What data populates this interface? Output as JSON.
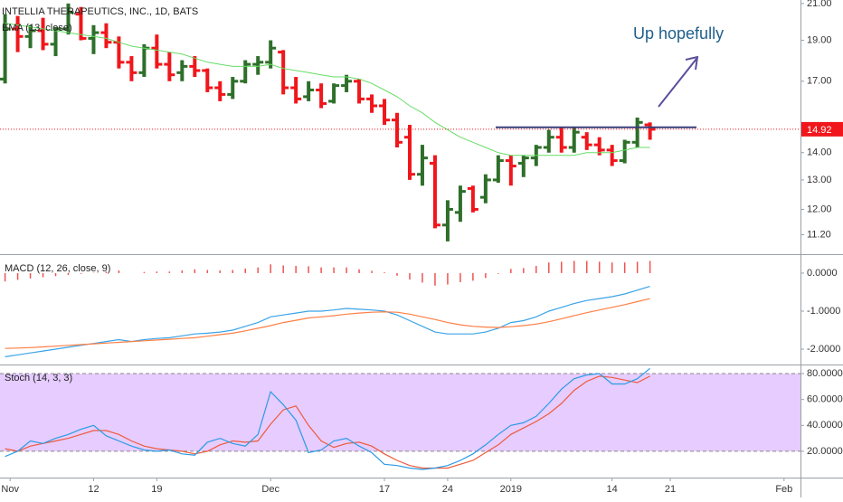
{
  "chart_data": [
    {
      "type": "ohlc",
      "title": "INTELLIA THERAPEUTICS, INC., 1D, BATS",
      "subtitle": "EMA (13, close)",
      "annotation": "Up hopefully",
      "x": [
        0,
        1,
        2,
        3,
        4,
        5,
        6,
        7,
        8,
        9,
        10,
        11,
        12,
        13,
        14,
        15,
        16,
        17,
        18,
        19,
        20,
        21,
        22,
        23,
        24,
        25,
        26,
        27,
        28,
        29,
        30,
        31,
        32,
        33,
        34,
        35,
        36,
        37,
        38,
        39,
        40,
        41,
        42,
        43,
        44,
        45,
        46,
        47,
        48,
        49,
        50,
        51
      ],
      "open": [
        17.1,
        19.6,
        19.2,
        19.5,
        18.8,
        19.6,
        20.4,
        19.1,
        19.4,
        18.9,
        17.9,
        17.4,
        18.6,
        17.8,
        17.4,
        17.7,
        17.5,
        16.7,
        16.4,
        17.0,
        17.8,
        17.9,
        18.4,
        16.7,
        16.3,
        16.6,
        16.1,
        16.8,
        17.0,
        16.2,
        15.9,
        15.3,
        14.6,
        13.2,
        13.6,
        11.5,
        11.9,
        12.7,
        12.4,
        13.0,
        13.7,
        13.6,
        13.8,
        14.2,
        14.6,
        14.2,
        14.6,
        14.3,
        14.1,
        13.7,
        14.4,
        15.1
      ],
      "high": [
        20.4,
        20.3,
        19.8,
        20.2,
        19.7,
        21.0,
        20.8,
        19.8,
        19.9,
        19.2,
        18.2,
        18.8,
        19.3,
        18.4,
        18.0,
        18.2,
        17.6,
        17.0,
        17.2,
        18.0,
        18.2,
        19.0,
        18.5,
        17.2,
        17.0,
        16.9,
        16.9,
        17.3,
        17.1,
        16.4,
        16.2,
        15.6,
        15.1,
        14.3,
        13.9,
        12.3,
        12.8,
        12.8,
        13.2,
        13.9,
        13.9,
        13.9,
        14.3,
        14.9,
        15.0,
        15.0,
        14.8,
        14.6,
        14.3,
        14.5,
        15.4,
        15.2
      ],
      "low": [
        16.9,
        18.4,
        18.6,
        18.5,
        18.2,
        19.3,
        19.0,
        18.3,
        18.6,
        17.6,
        17.0,
        17.2,
        17.6,
        17.0,
        17.0,
        17.2,
        16.5,
        16.1,
        16.2,
        16.9,
        17.3,
        17.6,
        16.4,
        16.0,
        16.1,
        15.8,
        16.0,
        16.5,
        16.0,
        15.6,
        15.1,
        14.2,
        13.0,
        12.8,
        11.4,
        11.0,
        11.6,
        11.9,
        12.2,
        12.9,
        12.8,
        13.1,
        13.5,
        14.0,
        14.0,
        14.0,
        14.1,
        13.9,
        13.5,
        13.6,
        14.2,
        14.5
      ],
      "close": [
        19.6,
        19.2,
        19.5,
        18.8,
        19.6,
        20.5,
        19.1,
        19.4,
        18.9,
        17.9,
        17.4,
        18.6,
        17.8,
        17.3,
        17.7,
        17.5,
        16.7,
        16.4,
        17.0,
        17.8,
        17.9,
        18.6,
        16.7,
        16.2,
        16.6,
        16.0,
        16.8,
        17.0,
        16.2,
        15.9,
        15.3,
        14.4,
        13.2,
        13.8,
        11.5,
        12.0,
        12.6,
        12.0,
        13.0,
        13.7,
        13.5,
        13.8,
        14.2,
        14.6,
        14.2,
        14.8,
        14.3,
        14.1,
        13.7,
        14.4,
        15.2,
        14.92
      ],
      "ema": [
        19.9,
        19.8,
        19.7,
        19.6,
        19.5,
        19.4,
        19.3,
        19.2,
        19.1,
        18.9,
        18.7,
        18.6,
        18.5,
        18.4,
        18.3,
        18.1,
        17.9,
        17.8,
        17.7,
        17.7,
        17.7,
        17.8,
        17.6,
        17.5,
        17.4,
        17.3,
        17.2,
        17.2,
        17.1,
        16.9,
        16.6,
        16.3,
        15.9,
        15.6,
        15.2,
        14.9,
        14.6,
        14.4,
        14.2,
        14.0,
        13.9,
        13.9,
        13.9,
        13.9,
        13.9,
        13.9,
        14.0,
        14.0,
        14.0,
        14.1,
        14.2,
        14.2
      ],
      "up_color": "#2e6f2a",
      "down_color": "#f0161b",
      "ema_color": "#66dd66",
      "hline": 15.0,
      "hline_color": "#3a3f7a",
      "log": true,
      "xlim": [
        -0.4,
        62.9
      ],
      "ylim": [
        10.65,
        21.2
      ],
      "yticks": [
        {
          "value": 21,
          "label": "21.00"
        },
        {
          "value": 19,
          "label": "19.00"
        },
        {
          "value": 17,
          "label": "17.00"
        },
        {
          "value": 14,
          "label": "14.00"
        },
        {
          "value": 13,
          "label": "13.00"
        },
        {
          "value": 12,
          "label": "12.00"
        },
        {
          "value": 11.2,
          "label": "11.20"
        }
      ]
    },
    {
      "type": "macd",
      "title": "MACD (12, 26, close, 9)",
      "histogram": [
        -0.22,
        -0.18,
        -0.14,
        -0.11,
        -0.08,
        -0.05,
        -0.02,
        0.01,
        0.04,
        0.07,
        0.0,
        0.03,
        0.04,
        0.04,
        0.07,
        0.1,
        0.08,
        0.07,
        0.08,
        0.12,
        0.15,
        0.23,
        0.2,
        0.19,
        0.18,
        0.15,
        0.15,
        0.15,
        0.1,
        0.06,
        0.02,
        -0.07,
        -0.17,
        -0.25,
        -0.33,
        -0.3,
        -0.24,
        -0.2,
        -0.13,
        -0.02,
        0.11,
        0.13,
        0.19,
        0.28,
        0.3,
        0.32,
        0.32,
        0.3,
        0.28,
        0.28,
        0.3,
        0.32
      ],
      "macd": [
        -2.2,
        -2.15,
        -2.1,
        -2.05,
        -2.0,
        -1.95,
        -1.9,
        -1.85,
        -1.8,
        -1.75,
        -1.8,
        -1.75,
        -1.72,
        -1.7,
        -1.65,
        -1.6,
        -1.58,
        -1.55,
        -1.5,
        -1.4,
        -1.3,
        -1.15,
        -1.1,
        -1.05,
        -1.0,
        -1.0,
        -0.97,
        -0.93,
        -0.95,
        -0.97,
        -1.0,
        -1.1,
        -1.25,
        -1.4,
        -1.55,
        -1.6,
        -1.6,
        -1.6,
        -1.55,
        -1.45,
        -1.3,
        -1.25,
        -1.15,
        -1.0,
        -0.9,
        -0.8,
        -0.72,
        -0.67,
        -0.62,
        -0.55,
        -0.45,
        -0.35
      ],
      "signal": [
        -1.98,
        -1.97,
        -1.96,
        -1.94,
        -1.92,
        -1.9,
        -1.88,
        -1.86,
        -1.84,
        -1.82,
        -1.8,
        -1.78,
        -1.76,
        -1.74,
        -1.72,
        -1.7,
        -1.66,
        -1.62,
        -1.58,
        -1.52,
        -1.45,
        -1.38,
        -1.3,
        -1.24,
        -1.18,
        -1.15,
        -1.12,
        -1.08,
        -1.05,
        -1.03,
        -1.02,
        -1.03,
        -1.08,
        -1.15,
        -1.22,
        -1.3,
        -1.36,
        -1.4,
        -1.42,
        -1.43,
        -1.41,
        -1.38,
        -1.34,
        -1.28,
        -1.2,
        -1.12,
        -1.04,
        -0.97,
        -0.9,
        -0.83,
        -0.75,
        -0.67
      ],
      "histogram_color": "#ef5350",
      "macd_color": "#3ba3e8",
      "signal_color": "#ff7f45",
      "xlim": [
        -0.4,
        62.9
      ],
      "ylim": [
        -2.38,
        0.45
      ],
      "yticks": [
        {
          "value": 0,
          "label": "0.0000"
        },
        {
          "value": -1,
          "label": "-1.0000"
        },
        {
          "value": -2,
          "label": "-2.0000"
        }
      ]
    },
    {
      "type": "stoch",
      "title": "Stoch (14, 3, 3)",
      "k": [
        16,
        20,
        28,
        26,
        30,
        33,
        37,
        40,
        32,
        28,
        24,
        21,
        20,
        21,
        18,
        17,
        27,
        30,
        26,
        24,
        33,
        66,
        56,
        44,
        19,
        21,
        28,
        30,
        24,
        19,
        10,
        9,
        7,
        6,
        7,
        9,
        13,
        18,
        25,
        33,
        40,
        42,
        47,
        57,
        68,
        76,
        79,
        80,
        72,
        72,
        76,
        84
      ],
      "d": [
        22,
        20,
        24,
        26,
        28,
        30,
        33,
        36,
        36,
        33,
        28,
        24,
        22,
        21,
        20,
        18,
        20,
        25,
        28,
        27,
        28,
        41,
        52,
        55,
        40,
        28,
        23,
        26,
        27,
        24,
        18,
        13,
        9,
        7,
        7,
        7,
        10,
        13,
        19,
        25,
        33,
        38,
        43,
        49,
        57,
        67,
        74,
        78,
        77,
        75,
        73,
        78
      ],
      "k_color": "#2b9be4",
      "d_color": "#ef5a3c",
      "bands": [
        20,
        80
      ],
      "band_color": "#e6ccff",
      "xlim": [
        -0.4,
        62.9
      ],
      "ylim": [
        0.4,
        85.6
      ],
      "yticks": [
        {
          "value": 80,
          "label": "80.0000"
        },
        {
          "value": 60,
          "label": "60.0000"
        },
        {
          "value": 40,
          "label": "40.0000"
        },
        {
          "value": 20,
          "label": "20.0000"
        }
      ],
      "xticks": [
        {
          "value": 0.4,
          "label": "Nov"
        },
        {
          "value": 7,
          "label": "12"
        },
        {
          "value": 12,
          "label": "19"
        },
        {
          "value": 21,
          "label": "Dec"
        },
        {
          "value": 30,
          "label": "17"
        },
        {
          "value": 35,
          "label": "24"
        },
        {
          "value": 40,
          "label": "2019"
        },
        {
          "value": 48,
          "label": "14"
        },
        {
          "value": 52.6,
          "label": "21"
        },
        {
          "value": 61.6,
          "label": "Feb"
        }
      ]
    }
  ]
}
